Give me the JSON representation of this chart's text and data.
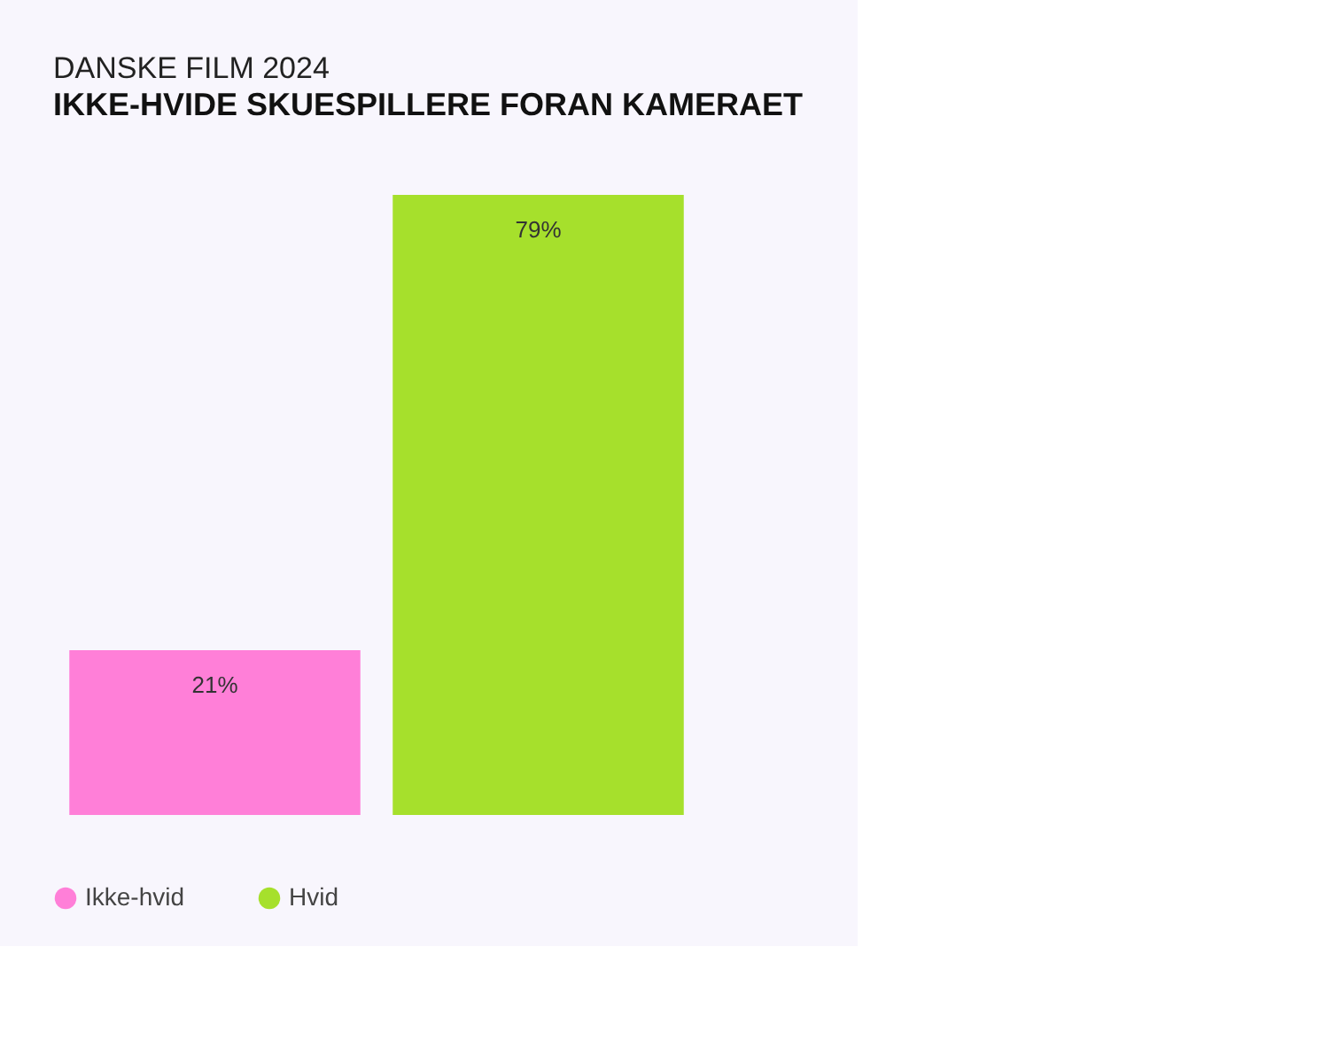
{
  "chart_data": {
    "type": "bar",
    "title": "DANSKE FILM 2024",
    "subtitle": "IKKE-HVIDE SKUESPILLERE FORAN KAMERAET",
    "categories": [
      null,
      null
    ],
    "series": [
      {
        "name": "Ikke-hvid",
        "color": "#ff7fd8",
        "values": [
          21,
          null
        ],
        "value_labels": [
          "21%",
          null
        ]
      },
      {
        "name": "Hvid",
        "color": "#a6e02c",
        "values": [
          null,
          79
        ],
        "value_labels": [
          null,
          "79%"
        ]
      }
    ],
    "stacked": true,
    "tick_labels": false,
    "legend": "bottom left"
  }
}
